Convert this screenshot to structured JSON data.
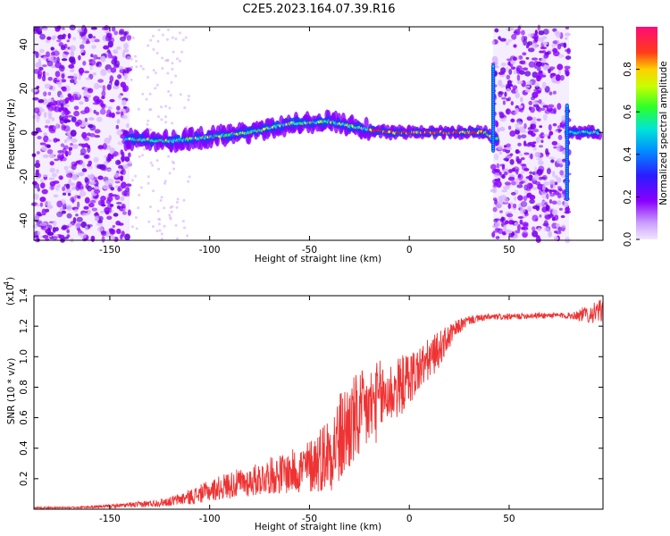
{
  "title": "C2E5.2023.164.07.39.R16",
  "chart_data": [
    {
      "type": "heatmap",
      "xlabel": "Height of straight line (km)",
      "ylabel": "Frequency (Hz)",
      "xlim": [
        -188,
        97
      ],
      "ylim": [
        -49,
        48
      ],
      "xticks": [
        -150,
        -100,
        -50,
        0,
        50
      ],
      "yticks": [
        -40,
        -20,
        0,
        20,
        40
      ],
      "colorbar": {
        "label": "Normalized spectral amplitude",
        "range": [
          0,
          1
        ],
        "ticks": [
          0.0,
          0.2,
          0.4,
          0.6,
          0.8
        ],
        "tick_labels": [
          "0.0",
          "0.2",
          "0.4",
          "0.6",
          "0.8"
        ]
      },
      "colors": {
        "low": "#d9b8ff",
        "violet": "#8a00ff",
        "blue": "#1a3cff",
        "cyan": "#00e0e0",
        "green": "#2bff2b",
        "yellow": "#f5ff00",
        "red": "#ff1a1a",
        "pink": "#ff0a78"
      },
      "ridge": [
        {
          "x": -140,
          "y": -3
        },
        {
          "x": -120,
          "y": -4
        },
        {
          "x": -100,
          "y": -2
        },
        {
          "x": -80,
          "y": 0
        },
        {
          "x": -60,
          "y": 4
        },
        {
          "x": -40,
          "y": 5
        },
        {
          "x": -25,
          "y": 2
        },
        {
          "x": -10,
          "y": 0
        },
        {
          "x": 0,
          "y": 0
        },
        {
          "x": 20,
          "y": 0
        },
        {
          "x": 38,
          "y": 0
        },
        {
          "x": 42,
          "y": -3
        },
        {
          "x": 80,
          "y": 0
        },
        {
          "x": 95,
          "y": 0
        }
      ],
      "noise_regions": [
        {
          "x": [
            -188,
            -140
          ],
          "y": [
            -49,
            48
          ]
        },
        {
          "x": [
            42,
            80
          ],
          "y": [
            -49,
            48
          ]
        }
      ]
    },
    {
      "type": "line",
      "xlabel": "Height of straight line (km)",
      "ylabel": "SNR (10 * v/v)",
      "multiplier_label": "(x10",
      "multiplier_exp": "4",
      "xlim": [
        -188,
        97
      ],
      "ylim": [
        0,
        1.4
      ],
      "xticks": [
        -150,
        -100,
        -50,
        0,
        50
      ],
      "yticks": [
        0.2,
        0.4,
        0.6,
        0.8,
        1.0,
        1.2,
        1.4
      ],
      "ytick_labels": [
        "0.2",
        "0.4",
        "0.6",
        "0.8",
        "1.0",
        "1.2",
        "1.4"
      ],
      "color": "#ee3333",
      "series": [
        {
          "x": [
            -188,
            -170,
            -150,
            -135,
            -120,
            -110,
            -100,
            -90,
            -80,
            -70,
            -60,
            -50,
            -45,
            -40,
            -35,
            -30,
            -25,
            -20,
            -15,
            -10,
            -5,
            0,
            5,
            10,
            15,
            20,
            25,
            30,
            40,
            50,
            60,
            70,
            80,
            90,
            97
          ],
          "values": [
            0.01,
            0.01,
            0.02,
            0.03,
            0.05,
            0.08,
            0.12,
            0.16,
            0.18,
            0.22,
            0.24,
            0.28,
            0.33,
            0.38,
            0.45,
            0.55,
            0.6,
            0.66,
            0.72,
            0.76,
            0.8,
            0.86,
            0.92,
            0.98,
            1.05,
            1.13,
            1.2,
            1.24,
            1.26,
            1.26,
            1.27,
            1.27,
            1.27,
            1.28,
            1.3
          ],
          "noise_amplitude": [
            0.005,
            0.005,
            0.01,
            0.02,
            0.03,
            0.05,
            0.07,
            0.09,
            0.1,
            0.12,
            0.14,
            0.18,
            0.22,
            0.26,
            0.32,
            0.32,
            0.3,
            0.28,
            0.26,
            0.22,
            0.2,
            0.18,
            0.16,
            0.14,
            0.12,
            0.08,
            0.05,
            0.03,
            0.02,
            0.02,
            0.02,
            0.02,
            0.02,
            0.06,
            0.08
          ]
        }
      ]
    }
  ]
}
